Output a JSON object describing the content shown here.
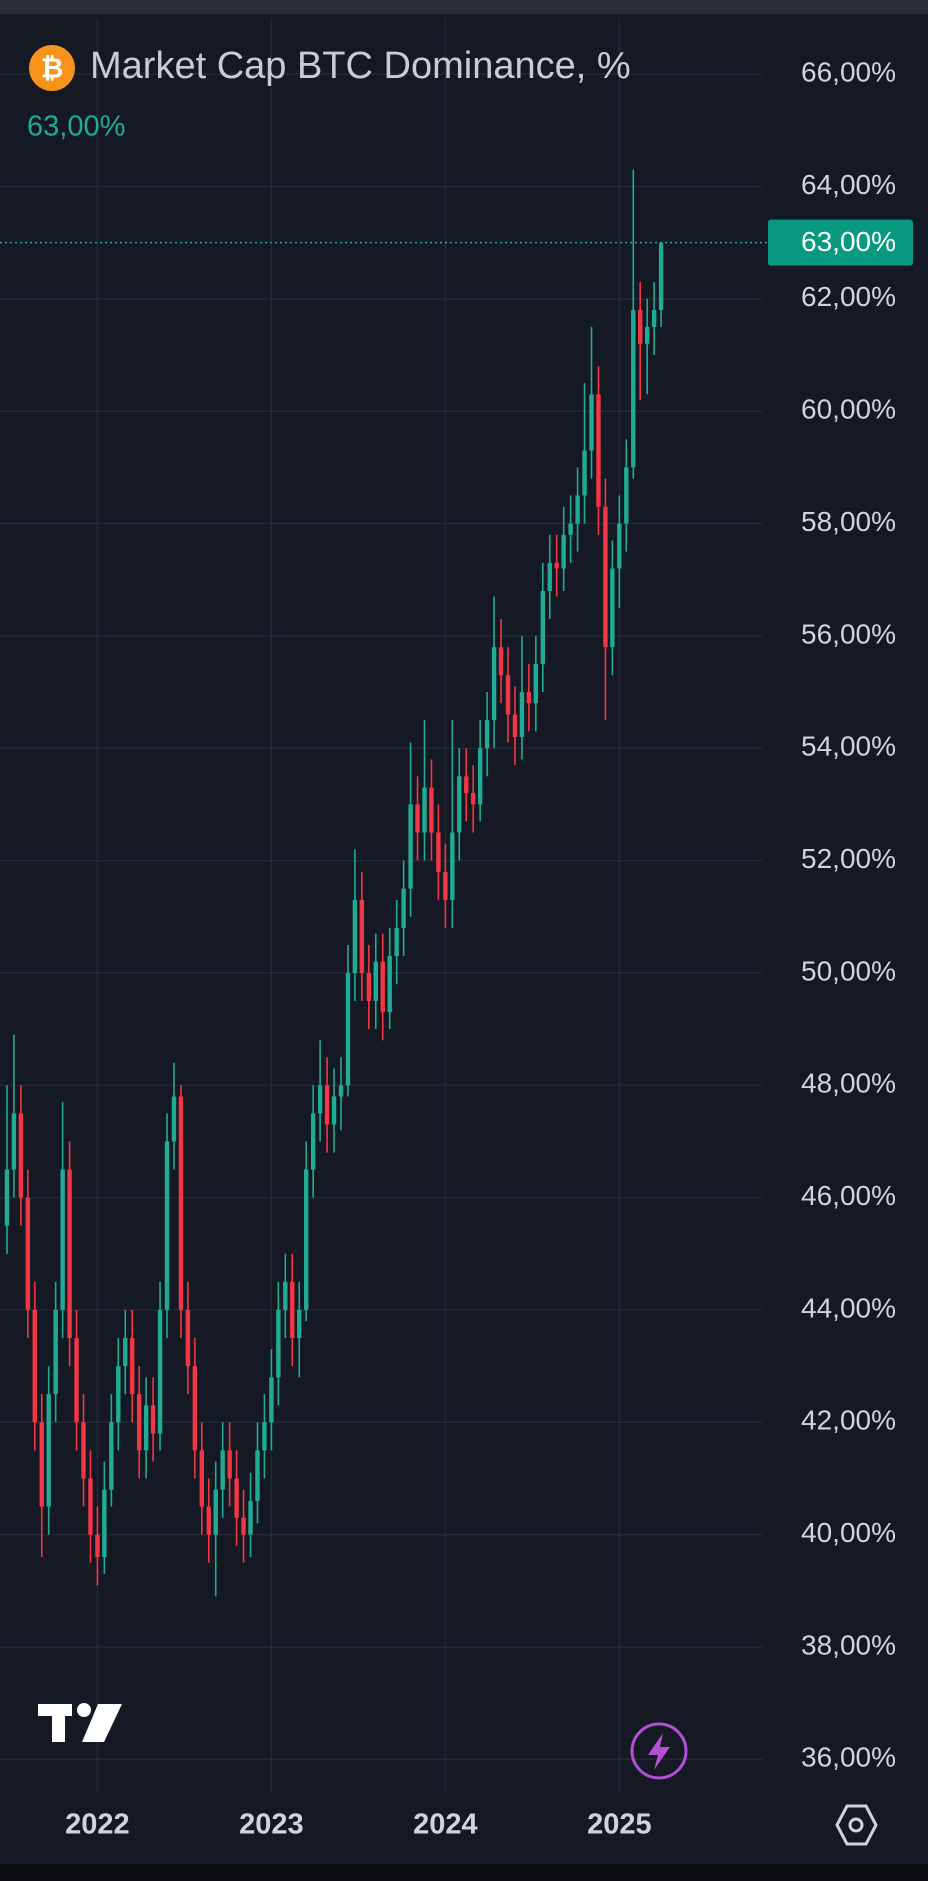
{
  "chart_data": {
    "type": "candlestick",
    "title": "Market Cap BTC Dominance, %",
    "last_price": {
      "value": 63,
      "label": "63,00%"
    },
    "up_color": "#22ab94",
    "down_color": "#f23645",
    "xlim": [
      2021.44,
      2025.82
    ],
    "xticks": [
      2022,
      2023,
      2024,
      2025
    ],
    "ylim": [
      35.4,
      67.0
    ],
    "yticks": [
      {
        "value": 36,
        "label": "36,00%"
      },
      {
        "value": 38,
        "label": "38,00%"
      },
      {
        "value": 40,
        "label": "40,00%"
      },
      {
        "value": 42,
        "label": "42,00%"
      },
      {
        "value": 44,
        "label": "44,00%"
      },
      {
        "value": 46,
        "label": "46,00%"
      },
      {
        "value": 48,
        "label": "48,00%"
      },
      {
        "value": 50,
        "label": "50,00%"
      },
      {
        "value": 52,
        "label": "52,00%"
      },
      {
        "value": 54,
        "label": "54,00%"
      },
      {
        "value": 56,
        "label": "56,00%"
      },
      {
        "value": 58,
        "label": "58,00%"
      },
      {
        "value": 60,
        "label": "60,00%"
      },
      {
        "value": 62,
        "label": "62,00%"
      },
      {
        "value": 64,
        "label": "64,00%"
      },
      {
        "value": 66,
        "label": "66,00%"
      }
    ],
    "grid": true,
    "x": [
      2021.48,
      2021.52,
      2021.56,
      2021.6,
      2021.64,
      2021.68,
      2021.72,
      2021.76,
      2021.8,
      2021.84,
      2021.88,
      2021.92,
      2021.96,
      2022.0,
      2022.04,
      2022.08,
      2022.12,
      2022.16,
      2022.2,
      2022.24,
      2022.28,
      2022.32,
      2022.36,
      2022.4,
      2022.44,
      2022.48,
      2022.52,
      2022.56,
      2022.6,
      2022.64,
      2022.68,
      2022.72,
      2022.76,
      2022.8,
      2022.84,
      2022.88,
      2022.92,
      2022.96,
      2023.0,
      2023.04,
      2023.08,
      2023.12,
      2023.16,
      2023.2,
      2023.24,
      2023.28,
      2023.32,
      2023.36,
      2023.4,
      2023.44,
      2023.48,
      2023.52,
      2023.56,
      2023.6,
      2023.64,
      2023.68,
      2023.72,
      2023.76,
      2023.8,
      2023.84,
      2023.88,
      2023.92,
      2023.96,
      2024.0,
      2024.04,
      2024.08,
      2024.12,
      2024.16,
      2024.2,
      2024.24,
      2024.28,
      2024.32,
      2024.36,
      2024.4,
      2024.44,
      2024.48,
      2024.52,
      2024.56,
      2024.6,
      2024.64,
      2024.68,
      2024.72,
      2024.76,
      2024.8,
      2024.84,
      2024.88,
      2024.92,
      2024.96,
      2025.0,
      2025.04,
      2025.08,
      2025.12,
      2025.16,
      2025.2,
      2025.24
    ],
    "candles": [
      [
        45.5,
        48.0,
        45.0,
        46.5
      ],
      [
        46.5,
        48.9,
        46.0,
        47.5
      ],
      [
        47.5,
        48.0,
        45.5,
        46.0
      ],
      [
        46.0,
        46.5,
        43.5,
        44.0
      ],
      [
        44.0,
        44.5,
        41.5,
        42.0
      ],
      [
        42.0,
        42.5,
        39.6,
        40.5
      ],
      [
        40.5,
        43.0,
        40.0,
        42.5
      ],
      [
        42.5,
        44.5,
        42.0,
        44.0
      ],
      [
        44.0,
        47.7,
        43.5,
        46.5
      ],
      [
        46.5,
        47.0,
        43.0,
        43.5
      ],
      [
        43.5,
        44.0,
        41.5,
        42.0
      ],
      [
        42.0,
        42.5,
        40.5,
        41.0
      ],
      [
        41.0,
        41.5,
        39.5,
        40.0
      ],
      [
        40.0,
        40.5,
        39.1,
        39.6
      ],
      [
        39.6,
        41.3,
        39.3,
        40.8
      ],
      [
        40.8,
        42.5,
        40.5,
        42.0
      ],
      [
        42.0,
        43.5,
        41.5,
        43.0
      ],
      [
        43.0,
        44.0,
        42.5,
        43.5
      ],
      [
        43.5,
        44.0,
        42.0,
        42.5
      ],
      [
        42.5,
        43.0,
        41.0,
        41.5
      ],
      [
        41.5,
        42.8,
        41.0,
        42.3
      ],
      [
        42.3,
        42.8,
        41.3,
        41.8
      ],
      [
        41.8,
        44.5,
        41.5,
        44.0
      ],
      [
        44.0,
        47.5,
        43.5,
        47.0
      ],
      [
        47.0,
        48.4,
        46.5,
        47.8
      ],
      [
        47.8,
        48.0,
        43.5,
        44.0
      ],
      [
        44.0,
        44.5,
        42.5,
        43.0
      ],
      [
        43.0,
        43.5,
        41.0,
        41.5
      ],
      [
        41.5,
        42.0,
        40.0,
        40.5
      ],
      [
        40.5,
        41.0,
        39.5,
        40.0
      ],
      [
        40.0,
        41.3,
        38.9,
        40.8
      ],
      [
        40.8,
        42.0,
        40.3,
        41.5
      ],
      [
        41.5,
        42.0,
        40.5,
        41.0
      ],
      [
        41.0,
        41.5,
        39.8,
        40.3
      ],
      [
        40.3,
        40.8,
        39.5,
        40.0
      ],
      [
        40.0,
        41.1,
        39.6,
        40.6
      ],
      [
        40.6,
        42.0,
        40.2,
        41.5
      ],
      [
        41.5,
        42.5,
        41.0,
        42.0
      ],
      [
        42.0,
        43.3,
        41.5,
        42.8
      ],
      [
        42.8,
        44.5,
        42.3,
        44.0
      ],
      [
        44.0,
        45.0,
        43.5,
        44.5
      ],
      [
        44.5,
        45.0,
        43.0,
        43.5
      ],
      [
        43.5,
        44.5,
        42.8,
        44.0
      ],
      [
        44.0,
        47.0,
        43.8,
        46.5
      ],
      [
        46.5,
        48.0,
        46.0,
        47.5
      ],
      [
        47.5,
        48.8,
        47.0,
        48.0
      ],
      [
        48.0,
        48.5,
        46.8,
        47.3
      ],
      [
        47.3,
        48.3,
        46.8,
        47.8
      ],
      [
        47.8,
        48.5,
        47.2,
        48.0
      ],
      [
        48.0,
        50.5,
        47.8,
        50.0
      ],
      [
        50.0,
        52.2,
        49.5,
        51.3
      ],
      [
        51.3,
        51.8,
        49.5,
        50.0
      ],
      [
        50.0,
        50.5,
        49.0,
        49.5
      ],
      [
        49.5,
        50.7,
        49.0,
        50.2
      ],
      [
        50.2,
        50.7,
        48.8,
        49.3
      ],
      [
        49.3,
        50.8,
        49.0,
        50.3
      ],
      [
        50.3,
        51.3,
        49.8,
        50.8
      ],
      [
        50.8,
        52.0,
        50.3,
        51.5
      ],
      [
        51.5,
        54.1,
        51.0,
        53.0
      ],
      [
        53.0,
        53.5,
        52.0,
        52.5
      ],
      [
        52.5,
        54.5,
        52.0,
        53.3
      ],
      [
        53.3,
        53.8,
        52.0,
        52.5
      ],
      [
        52.5,
        53.0,
        51.3,
        51.8
      ],
      [
        51.8,
        52.3,
        50.8,
        51.3
      ],
      [
        51.3,
        54.5,
        50.8,
        52.5
      ],
      [
        52.5,
        54.0,
        52.0,
        53.5
      ],
      [
        53.5,
        54.0,
        52.7,
        53.2
      ],
      [
        53.2,
        53.7,
        52.5,
        53.0
      ],
      [
        53.0,
        54.5,
        52.7,
        54.0
      ],
      [
        54.0,
        55.0,
        53.5,
        54.5
      ],
      [
        54.5,
        56.7,
        54.0,
        55.8
      ],
      [
        55.8,
        56.3,
        54.8,
        55.3
      ],
      [
        55.3,
        55.8,
        54.1,
        54.6
      ],
      [
        54.6,
        55.1,
        53.7,
        54.2
      ],
      [
        54.2,
        56.0,
        53.8,
        55.0
      ],
      [
        55.0,
        55.5,
        54.3,
        54.8
      ],
      [
        54.8,
        56.0,
        54.3,
        55.5
      ],
      [
        55.5,
        57.3,
        55.0,
        56.8
      ],
      [
        56.8,
        57.8,
        56.3,
        57.3
      ],
      [
        57.3,
        57.8,
        56.7,
        57.2
      ],
      [
        57.2,
        58.3,
        56.8,
        57.8
      ],
      [
        57.8,
        58.5,
        57.3,
        58.0
      ],
      [
        58.0,
        59.0,
        57.5,
        58.5
      ],
      [
        58.5,
        60.5,
        58.0,
        59.3
      ],
      [
        59.3,
        61.5,
        58.8,
        60.3
      ],
      [
        60.3,
        60.8,
        57.8,
        58.3
      ],
      [
        58.3,
        58.8,
        54.5,
        55.8
      ],
      [
        55.8,
        57.7,
        55.3,
        57.2
      ],
      [
        57.2,
        58.5,
        56.5,
        58.0
      ],
      [
        58.0,
        59.5,
        57.5,
        59.0
      ],
      [
        59.0,
        64.3,
        58.8,
        61.8
      ],
      [
        61.8,
        62.3,
        60.2,
        61.2
      ],
      [
        61.2,
        62.0,
        60.3,
        61.5
      ],
      [
        61.5,
        62.3,
        61.0,
        61.8
      ],
      [
        61.8,
        63.0,
        61.5,
        63.0
      ]
    ]
  }
}
